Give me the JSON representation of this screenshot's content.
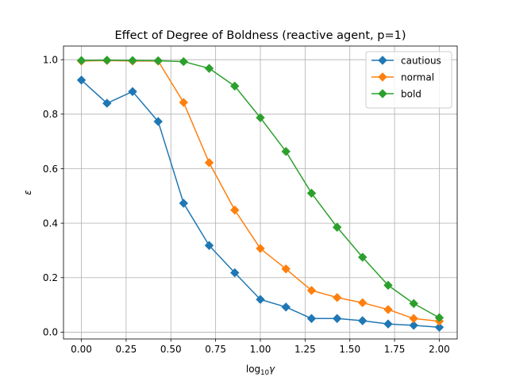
{
  "chart_data": {
    "type": "line",
    "title": "Effect of Degree of Boldness (reactive agent, p=1)",
    "xlabel": "log",
    "xlabel_sub": "10",
    "xlabel_var": "γ",
    "ylabel": "ε",
    "xlim": [
      -0.1,
      2.1
    ],
    "ylim": [
      -0.025,
      1.05
    ],
    "xticks": [
      0.0,
      0.25,
      0.5,
      0.75,
      1.0,
      1.25,
      1.5,
      1.75,
      2.0
    ],
    "xtick_labels": [
      "0.00",
      "0.25",
      "0.50",
      "0.75",
      "1.00",
      "1.25",
      "1.50",
      "1.75",
      "2.00"
    ],
    "yticks": [
      0.0,
      0.2,
      0.4,
      0.6,
      0.8,
      1.0
    ],
    "ytick_labels": [
      "0.0",
      "0.2",
      "0.4",
      "0.6",
      "0.8",
      "1.0"
    ],
    "grid": true,
    "legend_position": "top-right",
    "marker": "diamond",
    "x": [
      0.0,
      0.143,
      0.286,
      0.429,
      0.571,
      0.714,
      0.857,
      1.0,
      1.143,
      1.286,
      1.429,
      1.571,
      1.714,
      1.857,
      2.0
    ],
    "series": [
      {
        "name": "cautious",
        "color": "#1f77b4",
        "values": [
          0.925,
          0.84,
          0.883,
          0.773,
          0.473,
          0.318,
          0.218,
          0.12,
          0.092,
          0.05,
          0.05,
          0.042,
          0.03,
          0.025,
          0.018
        ]
      },
      {
        "name": "normal",
        "color": "#ff7f0e",
        "values": [
          0.995,
          0.997,
          0.995,
          0.995,
          0.843,
          0.622,
          0.448,
          0.307,
          0.232,
          0.153,
          0.127,
          0.108,
          0.083,
          0.05,
          0.04
        ]
      },
      {
        "name": "bold",
        "color": "#2ca02c",
        "values": [
          0.997,
          0.998,
          0.997,
          0.996,
          0.993,
          0.968,
          0.903,
          0.787,
          0.663,
          0.51,
          0.385,
          0.275,
          0.172,
          0.105,
          0.053
        ]
      }
    ]
  }
}
